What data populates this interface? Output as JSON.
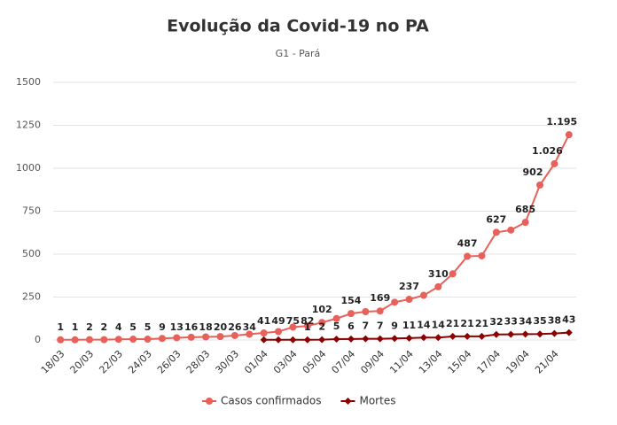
{
  "chart_data": {
    "type": "line",
    "title": "Evolução da Covid-19 no PA",
    "subtitle": "G1 - Pará",
    "categories": [
      "18/03",
      null,
      "20/03",
      null,
      "22/03",
      null,
      "24/03",
      null,
      "26/03",
      null,
      "28/03",
      null,
      "30/03",
      null,
      "01/04",
      null,
      "03/04",
      null,
      "05/04",
      null,
      "07/04",
      null,
      "09/04",
      null,
      "11/04",
      null,
      "13/04",
      null,
      "15/04",
      null,
      "17/04",
      null,
      "19/04",
      null,
      "21/04",
      null
    ],
    "series": [
      {
        "name": "Casos confirmados",
        "color": "#e8605a",
        "values": [
          1,
          1,
          2,
          2,
          4,
          5,
          5,
          9,
          13,
          16,
          18,
          20,
          26,
          34,
          41,
          49,
          75,
          82,
          102,
          125,
          154,
          165,
          169,
          220,
          237,
          260,
          310,
          385,
          487,
          490,
          627,
          640,
          685,
          902,
          1026,
          1195
        ],
        "value_labels": [
          "1",
          "1",
          "2",
          "2",
          "4",
          "5",
          "5",
          "9",
          "13",
          "16",
          "18",
          "20",
          "26",
          "34",
          "41",
          "49",
          "75",
          "82",
          "102",
          null,
          "154",
          null,
          "169",
          null,
          "237",
          null,
          "310",
          null,
          "487",
          null,
          "627",
          null,
          "685",
          "902",
          "1.026",
          "1.195"
        ]
      },
      {
        "name": "Mortes",
        "color": "#8b0000",
        "values": [
          null,
          null,
          null,
          null,
          null,
          null,
          null,
          null,
          null,
          null,
          null,
          null,
          null,
          null,
          1,
          1,
          1,
          1,
          2,
          5,
          6,
          7,
          7,
          9,
          11,
          14,
          14,
          21,
          21,
          21,
          32,
          33,
          34,
          35,
          38,
          43
        ],
        "value_labels": [
          null,
          null,
          null,
          null,
          null,
          null,
          null,
          null,
          null,
          null,
          null,
          null,
          null,
          null,
          null,
          null,
          null,
          "1",
          "2",
          "5",
          "6",
          "7",
          "7",
          "9",
          "11",
          "14",
          "14",
          "21",
          "21",
          "21",
          "32",
          "33",
          "34",
          "35",
          "38",
          "43"
        ]
      }
    ],
    "ylim": [
      0,
      1500
    ],
    "yticks": [
      0,
      250,
      500,
      750,
      1000,
      1250,
      1500
    ],
    "grid": true,
    "legend": "bottom"
  }
}
